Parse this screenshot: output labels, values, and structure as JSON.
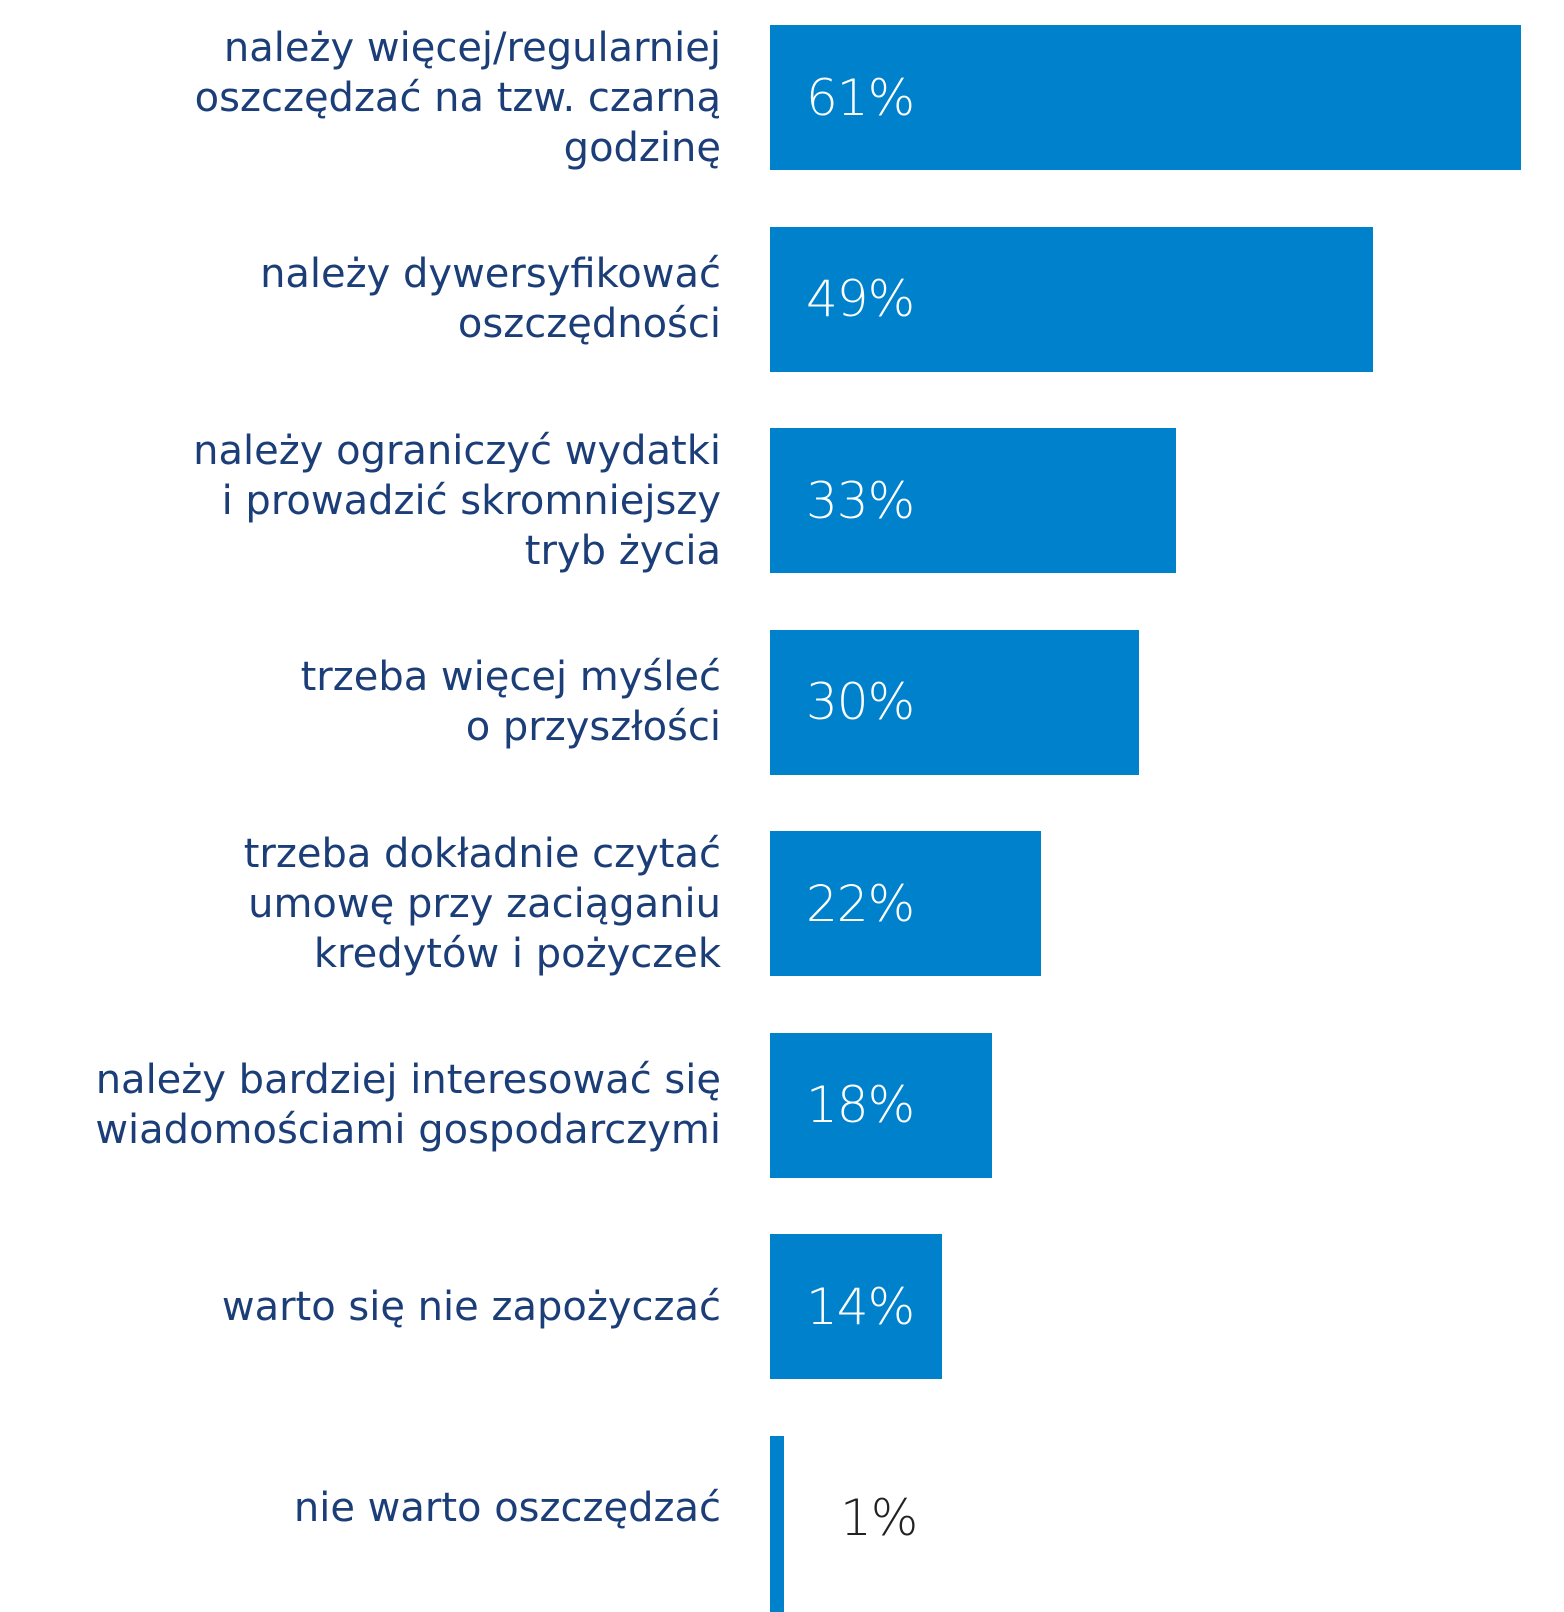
{
  "chart_data": {
    "type": "bar",
    "orientation": "horizontal",
    "categories": [
      "należy więcej/regularniej\noszczędzać na tzw. czarną\ngodzinę",
      "należy dywersyfikować\noszczędności",
      "należy ograniczyć wydatki\ni prowadzić skromniejszy\ntryb życia",
      "trzeba więcej myśleć\no przyszłości",
      "trzeba dokładnie czytać\numowę przy zaciąganiu\nkredytów i pożyczek",
      "należy bardziej interesować się\nwiadomościami gospodarczymi",
      "warto się nie zapożyczać",
      "nie warto oszczędzać"
    ],
    "values": [
      61,
      49,
      33,
      30,
      22,
      18,
      14,
      1
    ],
    "value_labels": [
      "61%",
      "49%",
      "33%",
      "30%",
      "22%",
      "18%",
      "14%",
      "1%"
    ],
    "unit": "%",
    "xlim": [
      0,
      61
    ],
    "grid": false,
    "legend": "none",
    "colors": {
      "bar": "#0081cc",
      "category_text": "#1c3e78",
      "value_text_inside": "#ffffff",
      "value_text_outside": "#222222"
    }
  }
}
